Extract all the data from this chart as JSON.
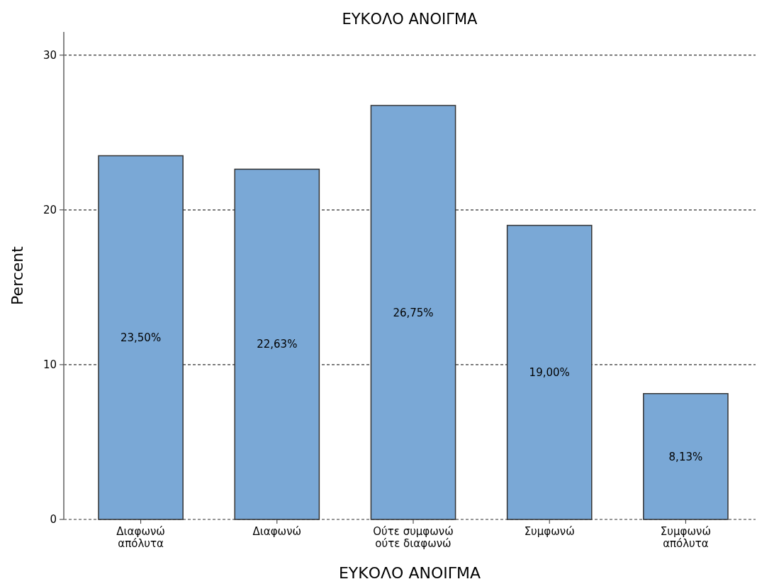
{
  "chart_data": {
    "type": "bar",
    "title": "ΕΥΚΟΛΟ ΑΝΟΙΓΜΑ",
    "xlabel": "ΕΥΚΟΛΟ ΑΝΟΙΓΜΑ",
    "ylabel": "Percent",
    "categories": [
      "Διαφωνώ απόλυτα",
      "Διαφωνώ",
      "Ούτε συμφωνώ ούτε διαφωνώ",
      "Συμφωνώ",
      "Συμφωνώ απόλυτα"
    ],
    "values": [
      23.5,
      22.63,
      26.75,
      19.0,
      8.13
    ],
    "value_labels": [
      "23,50%",
      "22,63%",
      "26,75%",
      "19,00%",
      "8,13%"
    ],
    "color": "#7aa8d6",
    "ylim": [
      0,
      31.5
    ],
    "yticks": [
      0,
      10,
      20,
      30
    ],
    "grid": "y"
  }
}
